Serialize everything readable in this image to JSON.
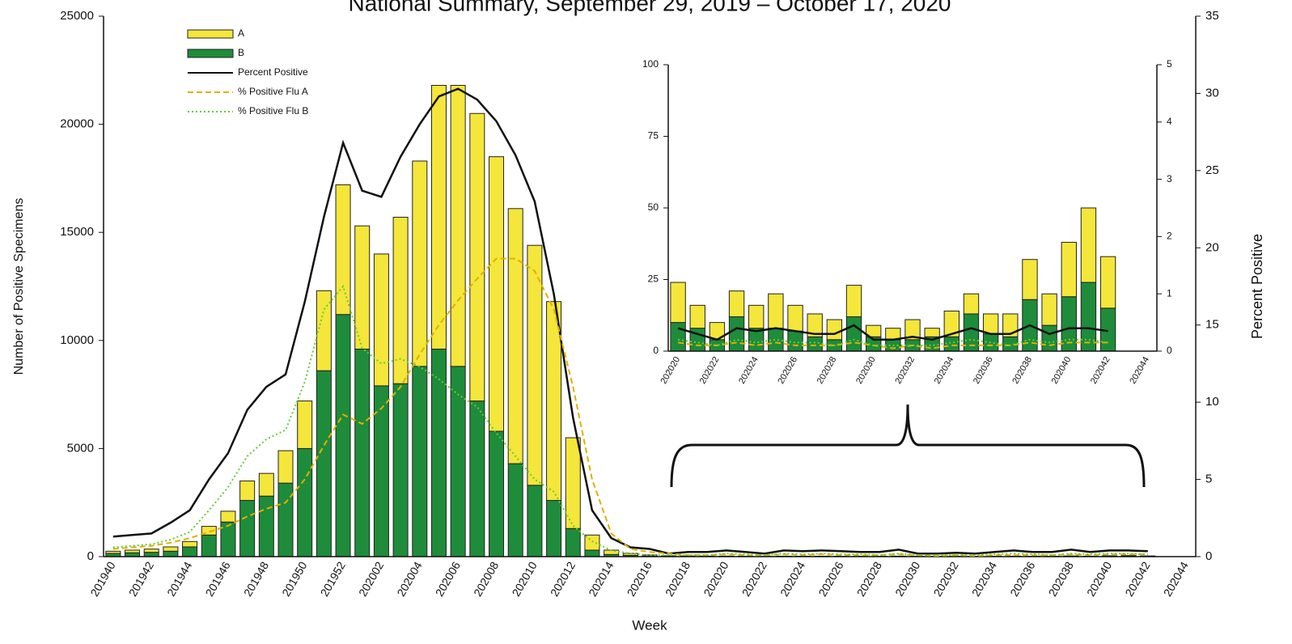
{
  "chart_data": [
    {
      "type": "bar",
      "stacked": true,
      "title": "National Summary, September 29, 2019 – October 17, 2020",
      "x_label": "Week",
      "y_label": "Number of Positive Specimens",
      "y2_label": "Percent Positive",
      "legend": "upper left",
      "categories": [
        "201940",
        null,
        "201942",
        null,
        "201944",
        null,
        "201946",
        null,
        "201948",
        null,
        "201950",
        null,
        "201952",
        null,
        "202002",
        null,
        "202004",
        null,
        "202006",
        null,
        "202008",
        null,
        "202010",
        null,
        "202012",
        null,
        "202014",
        null,
        "202016",
        null,
        "202018",
        null,
        "202020",
        null,
        "202022",
        null,
        "202024",
        null,
        "202026",
        null,
        "202028",
        null,
        "202030",
        null,
        "202032",
        null,
        "202034",
        null,
        "202036",
        null,
        "202038",
        null,
        "202040",
        null,
        "202042",
        null,
        "202044"
      ],
      "ylim": [
        0,
        25000
      ],
      "yticks": [
        0,
        5000,
        10000,
        15000,
        20000,
        25000
      ],
      "y2lim": [
        0,
        35
      ],
      "y2ticks": [
        0,
        5,
        10,
        15,
        20,
        25,
        30,
        35
      ],
      "series": [
        {
          "name": "A",
          "kind": "bar",
          "color": "#f4e63a",
          "values": [
            100,
            120,
            150,
            200,
            250,
            400,
            500,
            900,
            1050,
            1500,
            2200,
            3700,
            6000,
            5700,
            6100,
            7700,
            9500,
            12200,
            13000,
            13300,
            12700,
            11800,
            11100,
            9200,
            4200,
            700,
            200,
            90,
            50,
            25,
            18,
            15,
            14,
            8,
            6,
            9,
            8,
            12,
            9,
            8,
            7,
            11,
            4,
            4,
            7,
            3,
            9,
            7,
            7,
            8,
            14,
            11,
            19,
            26,
            18,
            null,
            null
          ]
        },
        {
          "name": "B",
          "kind": "bar",
          "color": "#1e8c3a",
          "values": [
            150,
            180,
            200,
            250,
            450,
            1000,
            1600,
            2600,
            2800,
            3400,
            5000,
            8600,
            11200,
            9600,
            7900,
            8000,
            8800,
            9600,
            8800,
            7200,
            5800,
            4300,
            3300,
            2600,
            1300,
            300,
            100,
            60,
            30,
            15,
            12,
            10,
            10,
            8,
            4,
            12,
            8,
            8,
            7,
            5,
            4,
            12,
            5,
            4,
            4,
            5,
            5,
            13,
            6,
            5,
            18,
            9,
            19,
            24,
            15,
            null,
            null
          ]
        },
        {
          "name": "Percent Positive",
          "kind": "line",
          "axis": "y2",
          "dash": "solid",
          "color": "#111111",
          "values": [
            1.3,
            1.4,
            1.5,
            2.2,
            3.0,
            5.0,
            6.7,
            9.5,
            11.0,
            11.8,
            16.5,
            22.0,
            26.8,
            23.7,
            23.3,
            25.9,
            28.0,
            29.8,
            30.3,
            29.6,
            28.2,
            26.0,
            23.0,
            17.0,
            9.0,
            3.0,
            1.2,
            0.6,
            0.5,
            0.2,
            0.3,
            0.3,
            0.4,
            0.3,
            0.2,
            0.4,
            0.35,
            0.4,
            0.35,
            0.3,
            0.3,
            0.45,
            0.2,
            0.2,
            0.25,
            0.2,
            0.3,
            0.4,
            0.3,
            0.3,
            0.45,
            0.3,
            0.4,
            0.4,
            0.35,
            null,
            null
          ]
        },
        {
          "name": "% Positive Flu A",
          "kind": "line",
          "axis": "y2",
          "dash": "dashed",
          "color": "#e0b000",
          "values": [
            0.5,
            0.6,
            0.7,
            0.9,
            1.2,
            1.6,
            2.0,
            2.6,
            3.1,
            3.5,
            5.0,
            7.2,
            9.2,
            8.6,
            9.6,
            11.0,
            13.1,
            15.0,
            16.6,
            18.0,
            19.3,
            19.3,
            18.5,
            16.0,
            11.0,
            5.0,
            1.5,
            0.5,
            0.3,
            0.2,
            0.1,
            0.1,
            0.15,
            0.1,
            0.1,
            0.15,
            0.1,
            0.15,
            0.1,
            0.1,
            0.1,
            0.15,
            0.1,
            0.05,
            0.1,
            0.05,
            0.1,
            0.1,
            0.1,
            0.1,
            0.15,
            0.1,
            0.15,
            0.15,
            0.15,
            null,
            null
          ]
        },
        {
          "name": "% Positive Flu B",
          "kind": "line",
          "axis": "y2",
          "dash": "dotted",
          "color": "#66cc33",
          "values": [
            0.6,
            0.7,
            0.8,
            1.1,
            1.6,
            3.0,
            4.5,
            6.5,
            7.6,
            8.2,
            11.3,
            16.0,
            17.5,
            13.5,
            12.5,
            12.8,
            12.3,
            11.5,
            10.5,
            9.7,
            8.0,
            6.5,
            5.0,
            4.2,
            2.0,
            1.0,
            0.4,
            0.2,
            0.1,
            0.1,
            0.1,
            0.1,
            0.2,
            0.15,
            0.1,
            0.2,
            0.15,
            0.2,
            0.15,
            0.15,
            0.1,
            0.2,
            0.1,
            0.1,
            0.1,
            0.1,
            0.15,
            0.2,
            0.15,
            0.1,
            0.2,
            0.15,
            0.2,
            0.2,
            0.15,
            null,
            null
          ]
        }
      ]
    },
    {
      "type": "bar",
      "stacked": true,
      "categories": [
        "202020",
        null,
        "202022",
        null,
        "202024",
        null,
        "202026",
        null,
        "202028",
        null,
        "202030",
        null,
        "202032",
        null,
        "202034",
        null,
        "202036",
        null,
        "202038",
        null,
        "202040",
        null,
        "202042",
        null,
        "202044"
      ],
      "ylim": [
        0,
        100
      ],
      "yticks": [
        0,
        25,
        50,
        75,
        100
      ],
      "y2lim": [
        0,
        5
      ],
      "y2ticks": [
        0,
        1,
        2,
        3,
        4,
        5
      ],
      "series": [
        {
          "kind": "bar",
          "color": "#f4e63a",
          "values": [
            14,
            8,
            6,
            9,
            8,
            12,
            9,
            8,
            7,
            11,
            4,
            4,
            7,
            3,
            9,
            7,
            7,
            8,
            14,
            11,
            19,
            26,
            18,
            null,
            null
          ]
        },
        {
          "kind": "bar",
          "color": "#1e8c3a",
          "values": [
            10,
            8,
            4,
            12,
            8,
            8,
            7,
            5,
            4,
            12,
            5,
            4,
            4,
            5,
            5,
            13,
            6,
            5,
            18,
            9,
            19,
            24,
            15,
            null,
            null
          ]
        },
        {
          "kind": "line",
          "axis": "y2",
          "dash": "solid",
          "color": "#111111",
          "values": [
            0.4,
            0.3,
            0.2,
            0.4,
            0.35,
            0.4,
            0.35,
            0.3,
            0.3,
            0.45,
            0.2,
            0.2,
            0.25,
            0.2,
            0.3,
            0.4,
            0.3,
            0.3,
            0.45,
            0.3,
            0.4,
            0.4,
            0.35,
            null,
            null
          ]
        },
        {
          "kind": "line",
          "axis": "y2",
          "dash": "dashed",
          "color": "#e0b000",
          "values": [
            0.15,
            0.1,
            0.1,
            0.15,
            0.1,
            0.15,
            0.1,
            0.1,
            0.1,
            0.15,
            0.1,
            0.05,
            0.1,
            0.05,
            0.1,
            0.1,
            0.1,
            0.1,
            0.15,
            0.1,
            0.15,
            0.15,
            0.15,
            null,
            null
          ]
        },
        {
          "kind": "line",
          "axis": "y2",
          "dash": "dotted",
          "color": "#66cc33",
          "values": [
            0.2,
            0.15,
            0.1,
            0.2,
            0.15,
            0.2,
            0.15,
            0.15,
            0.1,
            0.2,
            0.1,
            0.1,
            0.1,
            0.1,
            0.15,
            0.2,
            0.15,
            0.1,
            0.2,
            0.15,
            0.2,
            0.2,
            0.15,
            null,
            null
          ]
        }
      ]
    }
  ]
}
